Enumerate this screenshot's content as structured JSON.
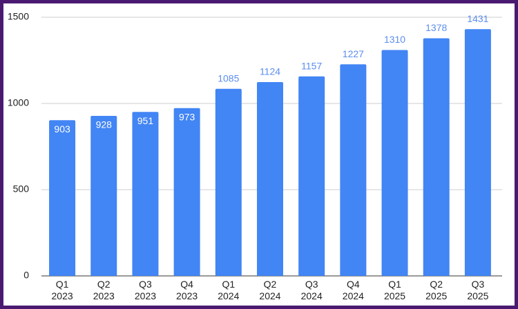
{
  "chart_data": {
    "type": "bar",
    "categories": [
      "Q1\n2023",
      "Q2\n2023",
      "Q3\n2023",
      "Q4\n2023",
      "Q1\n2024",
      "Q2\n2024",
      "Q3\n2024",
      "Q4\n2024",
      "Q1\n2025",
      "Q2\n2025",
      "Q3\n2025"
    ],
    "values": [
      903,
      928,
      951,
      973,
      1085,
      1124,
      1157,
      1227,
      1310,
      1378,
      1431
    ],
    "color": "#4285f4",
    "ylim": [
      0,
      1500
    ],
    "yticks": [
      0,
      500,
      1000,
      1500
    ],
    "grid": true
  }
}
